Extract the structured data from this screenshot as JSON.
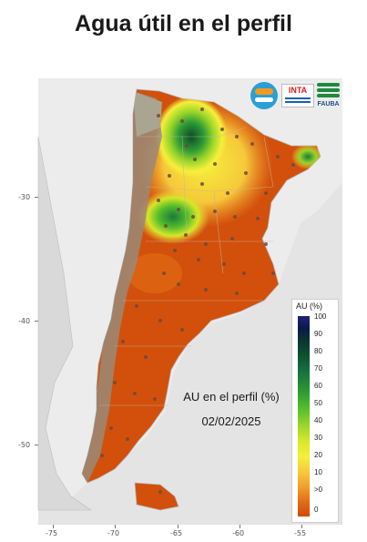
{
  "title": "Agua útil en el perfil",
  "map_label": {
    "line1": "AU en el perfil (%)",
    "line2": "02/02/2025"
  },
  "logos": {
    "inta": "INTA",
    "fauba": "FAUBA"
  },
  "axes": {
    "y_ticks": [
      "-30",
      "-40",
      "-50"
    ],
    "x_ticks": [
      "-75",
      "-70",
      "-65",
      "-60",
      "-55"
    ]
  },
  "legend": {
    "title": "AU (%)",
    "ticks": [
      "100",
      "90",
      "80",
      "70",
      "60",
      "50",
      "40",
      "30",
      "20",
      "10",
      ">0",
      "0"
    ]
  },
  "colors": {
    "dry": "#d2500c",
    "wet": "#1c6e2e",
    "mid": "#f6e63a",
    "no_data": "#9a8a78"
  }
}
